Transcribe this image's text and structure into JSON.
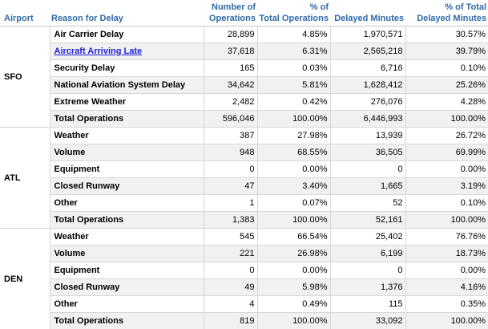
{
  "headers": {
    "airport": "Airport",
    "reason": "Reason for Delay",
    "ops_line1": "Number of",
    "ops_line2": "Operations",
    "pct_ops_line1": "% of",
    "pct_ops_line2": "Total Operations",
    "delayed": "Delayed Minutes",
    "pct_delayed_line1": "% of Total",
    "pct_delayed_line2": "Delayed Minutes"
  },
  "colors": {
    "header_text": "#2f6aa8",
    "link": "#1f1fd6",
    "alt_row": "#f1f1f1"
  },
  "groups": [
    {
      "airport": "SFO",
      "rows": [
        {
          "reason": "Air Carrier Delay",
          "ops": "28,899",
          "pct_ops": "4.85%",
          "delayed": "1,970,571",
          "pct_delayed": "30.57%"
        },
        {
          "reason": "Aircraft Arriving Late",
          "link": true,
          "ops": "37,618",
          "pct_ops": "6.31%",
          "delayed": "2,565,218",
          "pct_delayed": "39.79%"
        },
        {
          "reason": "Security Delay",
          "ops": "165",
          "pct_ops": "0.03%",
          "delayed": "6,716",
          "pct_delayed": "0.10%"
        },
        {
          "reason": "National Aviation System Delay",
          "ops": "34,642",
          "pct_ops": "5.81%",
          "delayed": "1,628,412",
          "pct_delayed": "25.26%"
        },
        {
          "reason": "Extreme Weather",
          "ops": "2,482",
          "pct_ops": "0.42%",
          "delayed": "276,076",
          "pct_delayed": "4.28%"
        },
        {
          "reason": "Total Operations",
          "ops": "596,046",
          "pct_ops": "100.00%",
          "delayed": "6,446,993",
          "pct_delayed": "100.00%"
        }
      ]
    },
    {
      "airport": "ATL",
      "rows": [
        {
          "reason": "Weather",
          "ops": "387",
          "pct_ops": "27.98%",
          "delayed": "13,939",
          "pct_delayed": "26.72%"
        },
        {
          "reason": "Volume",
          "ops": "948",
          "pct_ops": "68.55%",
          "delayed": "36,505",
          "pct_delayed": "69.99%"
        },
        {
          "reason": "Equipment",
          "ops": "0",
          "pct_ops": "0.00%",
          "delayed": "0",
          "pct_delayed": "0.00%"
        },
        {
          "reason": "Closed Runway",
          "ops": "47",
          "pct_ops": "3.40%",
          "delayed": "1,665",
          "pct_delayed": "3.19%"
        },
        {
          "reason": "Other",
          "ops": "1",
          "pct_ops": "0.07%",
          "delayed": "52",
          "pct_delayed": "0.10%"
        },
        {
          "reason": "Total Operations",
          "ops": "1,383",
          "pct_ops": "100.00%",
          "delayed": "52,161",
          "pct_delayed": "100.00%"
        }
      ]
    },
    {
      "airport": "DEN",
      "rows": [
        {
          "reason": "Weather",
          "ops": "545",
          "pct_ops": "66.54%",
          "delayed": "25,402",
          "pct_delayed": "76.76%"
        },
        {
          "reason": "Volume",
          "ops": "221",
          "pct_ops": "26.98%",
          "delayed": "6,199",
          "pct_delayed": "18.73%"
        },
        {
          "reason": "Equipment",
          "ops": "0",
          "pct_ops": "0.00%",
          "delayed": "0",
          "pct_delayed": "0.00%"
        },
        {
          "reason": "Closed Runway",
          "ops": "49",
          "pct_ops": "5.98%",
          "delayed": "1,376",
          "pct_delayed": "4.16%"
        },
        {
          "reason": "Other",
          "ops": "4",
          "pct_ops": "0.49%",
          "delayed": "115",
          "pct_delayed": "0.35%"
        },
        {
          "reason": "Total Operations",
          "ops": "819",
          "pct_ops": "100.00%",
          "delayed": "33,092",
          "pct_delayed": "100.00%"
        }
      ]
    }
  ]
}
